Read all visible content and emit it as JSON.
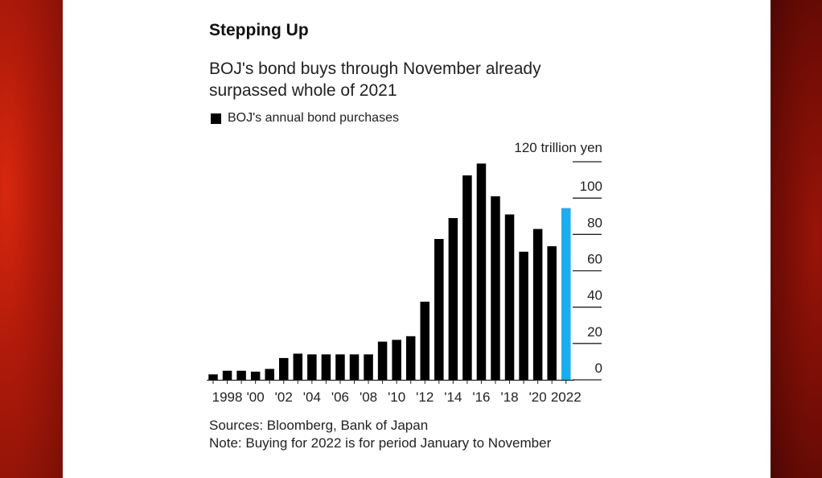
{
  "chart_data": {
    "type": "bar",
    "title": "Stepping Up",
    "subtitle": "BOJ's bond buys through November already surpassed whole of 2021",
    "legend": [
      {
        "name": "BOJ's annual bond purchases",
        "color": "#000000"
      }
    ],
    "y_unit_label": "120 trillion yen",
    "ylim": [
      0,
      120
    ],
    "yticks": [
      0,
      20,
      40,
      60,
      80,
      100,
      120
    ],
    "ytick_labels": [
      "0",
      "20",
      "40",
      "60",
      "80",
      "100",
      ""
    ],
    "x_tick_labels": [
      {
        "year": 1998,
        "label": "1998"
      },
      {
        "year": 2000,
        "label": "'00"
      },
      {
        "year": 2002,
        "label": "'02"
      },
      {
        "year": 2004,
        "label": "'04"
      },
      {
        "year": 2006,
        "label": "'06"
      },
      {
        "year": 2008,
        "label": "'08"
      },
      {
        "year": 2010,
        "label": "'10"
      },
      {
        "year": 2012,
        "label": "'12"
      },
      {
        "year": 2014,
        "label": "'14"
      },
      {
        "year": 2016,
        "label": "'16"
      },
      {
        "year": 2018,
        "label": "'18"
      },
      {
        "year": 2020,
        "label": "'20"
      },
      {
        "year": 2022,
        "label": "2022"
      }
    ],
    "series": [
      {
        "name": "BOJ's annual bond purchases",
        "color": "#000000",
        "highlight_color": "#1aaef0",
        "highlight_year": 2022,
        "years": [
          1997,
          1998,
          1999,
          2000,
          2001,
          2002,
          2003,
          2004,
          2005,
          2006,
          2007,
          2008,
          2009,
          2010,
          2011,
          2012,
          2013,
          2014,
          2015,
          2016,
          2017,
          2018,
          2019,
          2020,
          2021,
          2022
        ],
        "values": [
          3,
          5,
          5,
          4.5,
          6,
          12,
          14.4,
          14,
          14,
          14,
          14,
          14,
          21,
          22,
          24,
          43,
          77.5,
          89,
          112.5,
          119,
          101,
          91,
          70.5,
          83,
          73.5,
          94.5
        ]
      }
    ],
    "grid": false,
    "legend_position": "top-left",
    "y_axis_position": "right"
  },
  "footer": {
    "sources": "Sources: Bloomberg, Bank of Japan",
    "note": "Note: Buying for 2022 is for period January to November"
  }
}
